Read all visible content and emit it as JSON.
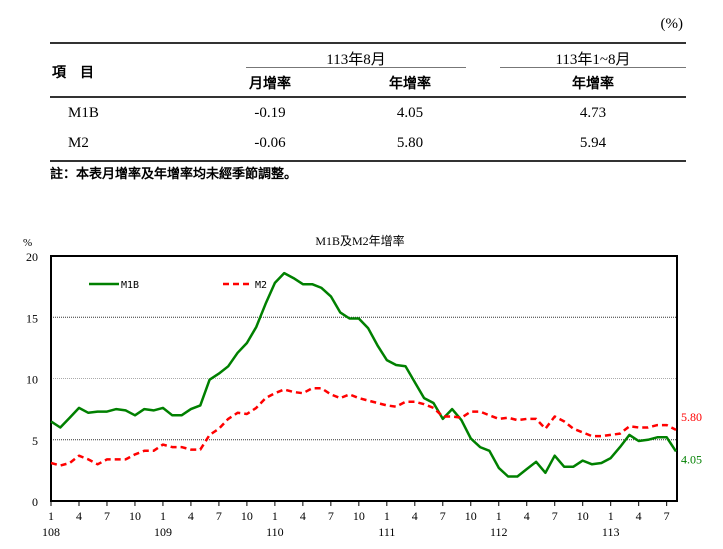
{
  "table": {
    "unit": "(%)",
    "item_header": "項　目",
    "group1": "113年8月",
    "group2": "113年1~8月",
    "col1": "月增率",
    "col2": "年增率",
    "col3": "年增率",
    "rows": [
      {
        "name": "M1B",
        "c1": "-0.19",
        "c2": "4.05",
        "c3": "4.73"
      },
      {
        "name": "M2",
        "c1": "-0.06",
        "c2": "5.80",
        "c3": "5.94"
      }
    ],
    "note": "註：本表月增率及年增率均未經季節調整。"
  },
  "chart_data": {
    "type": "line",
    "title": "M1B及M2年增率",
    "ylabel": "%",
    "ylim": [
      0,
      20
    ],
    "yticks": [
      0,
      5,
      10,
      15,
      20
    ],
    "gridlines": [
      5,
      10,
      15
    ],
    "x_start": "108/1",
    "x_end": "113/8",
    "month_tick_labels": [
      "1",
      "4",
      "7",
      "10"
    ],
    "year_labels": [
      "108",
      "109",
      "110",
      "111",
      "112",
      "113"
    ],
    "legend_placement": "top-left",
    "series": [
      {
        "name": "M1B",
        "color": "#008000",
        "style": "solid",
        "end_label": "4.05",
        "values": [
          6.5,
          6.0,
          6.8,
          7.6,
          7.2,
          7.3,
          7.3,
          7.5,
          7.4,
          7.0,
          7.5,
          7.4,
          7.6,
          7.0,
          7.0,
          7.5,
          7.8,
          9.9,
          10.4,
          11.0,
          12.1,
          12.9,
          14.2,
          16.1,
          17.8,
          18.6,
          18.2,
          17.7,
          17.7,
          17.4,
          16.7,
          15.4,
          14.9,
          14.9,
          14.1,
          12.7,
          11.5,
          11.1,
          11.0,
          9.7,
          8.4,
          8.0,
          6.7,
          7.5,
          6.6,
          5.1,
          4.4,
          4.1,
          2.7,
          2.0,
          2.0,
          2.6,
          3.2,
          2.3,
          3.7,
          2.8,
          2.8,
          3.3,
          3.0,
          3.1,
          3.5,
          4.4,
          5.4,
          4.9,
          5.0,
          5.2,
          5.2,
          4.05
        ]
      },
      {
        "name": "M2",
        "color": "#ff0000",
        "style": "dashed",
        "end_label": "5.80",
        "values": [
          3.1,
          2.9,
          3.1,
          3.7,
          3.4,
          3.0,
          3.4,
          3.4,
          3.4,
          3.8,
          4.1,
          4.1,
          4.6,
          4.4,
          4.4,
          4.2,
          4.2,
          5.4,
          5.9,
          6.7,
          7.2,
          7.1,
          7.6,
          8.4,
          8.8,
          9.1,
          8.9,
          8.8,
          9.2,
          9.2,
          8.7,
          8.4,
          8.7,
          8.4,
          8.2,
          8.0,
          7.8,
          7.7,
          8.1,
          8.1,
          7.9,
          7.6,
          6.9,
          6.9,
          6.8,
          7.3,
          7.3,
          7.0,
          6.7,
          6.8,
          6.6,
          6.7,
          6.7,
          5.9,
          6.9,
          6.5,
          5.9,
          5.6,
          5.3,
          5.3,
          5.4,
          5.5,
          6.1,
          6.0,
          6.0,
          6.2,
          6.2,
          5.8
        ]
      }
    ]
  }
}
